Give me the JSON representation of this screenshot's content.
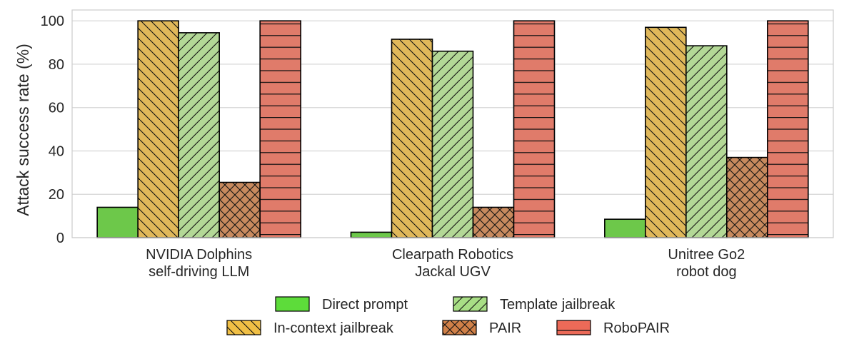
{
  "chart_data": {
    "type": "bar",
    "title": "",
    "xlabel": "",
    "ylabel": "Attack success rate (%)",
    "ylim": [
      0,
      105
    ],
    "yticks": [
      0,
      20,
      40,
      60,
      80,
      100
    ],
    "grid": "horizontal",
    "legend_position": "bottom",
    "categories": [
      [
        "NVIDIA Dolphins",
        "self-driving LLM"
      ],
      [
        "Clearpath Robotics",
        "Jackal UGV"
      ],
      [
        "Unitree Go2",
        "robot dog"
      ]
    ],
    "series": [
      {
        "name": "Direct prompt",
        "values": [
          14,
          2.5,
          8.5
        ],
        "color": "#6dc84a",
        "hatch": "none"
      },
      {
        "name": "In-context jailbreak",
        "values": [
          100,
          91.5,
          97
        ],
        "color": "#e0b85a",
        "hatch": "backslash"
      },
      {
        "name": "Template jailbreak",
        "values": [
          94.5,
          86,
          88.5
        ],
        "color": "#b3d896",
        "hatch": "slash"
      },
      {
        "name": "PAIR",
        "values": [
          25.5,
          14,
          37
        ],
        "color": "#c88a5e",
        "hatch": "cross"
      },
      {
        "name": "RoboPAIR",
        "values": [
          100,
          100,
          100
        ],
        "color": "#e07b6a",
        "hatch": "horizontal"
      }
    ],
    "legend": {
      "rows": [
        [
          0,
          2
        ],
        [
          1,
          3,
          4
        ]
      ],
      "swatch_colors": [
        "#5ddc3a",
        "#f0bf45",
        "#a8de85",
        "#d08048",
        "#ec6a58"
      ]
    }
  }
}
